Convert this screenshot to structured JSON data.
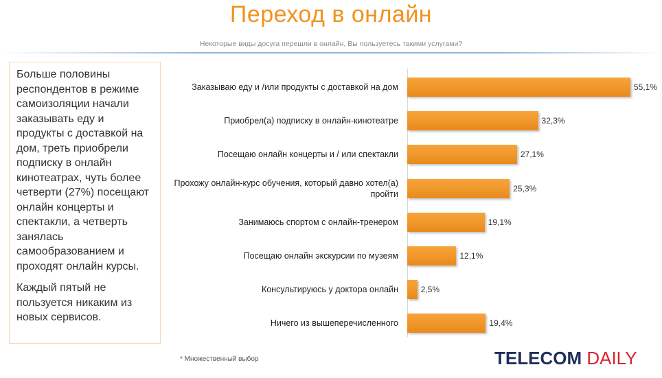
{
  "header": {
    "title": "Переход в онлайн",
    "subtitle": "Некоторые виды досуга перешли в онлайн, Вы пользуетесь такими услугами?"
  },
  "sidebar": {
    "paragraph1": "Больше половины респондентов в режиме самоизоляции начали заказывать еду и продукты с доставкой на дом, треть приобрели подписку в онлайн кинотеатрах, чуть более четверти (27%) посещают онлайн концерты и спектакли, а четверть занялась самообразованием и проходят онлайн курсы.",
    "paragraph2": "Каждый пятый не пользуется никаким из новых сервисов."
  },
  "footer": {
    "footnote": "* Множественный выбор",
    "logo_part1": "TELECOM",
    "logo_part2": "DAILY"
  },
  "colors": {
    "accent": "#f0921f",
    "bar": "#f29a2e",
    "logo_dark": "#1f2f5a",
    "logo_red": "#d9232e"
  },
  "chart_data": {
    "type": "bar",
    "orientation": "horizontal",
    "title": "Переход в онлайн",
    "subtitle": "Некоторые виды досуга перешли в онлайн, Вы пользуетесь такими услугами?",
    "categories": [
      "Заказываю еду и /или продукты с доставкой на дом",
      "Приобрел(а) подписку в онлайн-кинотеатре",
      "Посещаю онлайн концерты и / или спектакли",
      "Прохожу онлайн-курс обучения, который давно хотел(а) пройти",
      "Занимаюсь спортом с онлайн-тренером",
      "Посещаю онлайн экскурсии по музеям",
      "Консультируюсь у доктора онлайн",
      "Ничего из вышеперечисленного"
    ],
    "values": [
      55.1,
      32.3,
      27.1,
      25.3,
      19.1,
      12.1,
      2.5,
      19.4
    ],
    "value_labels": [
      "55,1%",
      "32,3%",
      "27,1%",
      "25,3%",
      "19,1%",
      "12,1%",
      "2,5%",
      "19,4%"
    ],
    "unit": "%",
    "xlim": [
      0,
      55.1
    ],
    "grid": false,
    "legend": "none"
  }
}
